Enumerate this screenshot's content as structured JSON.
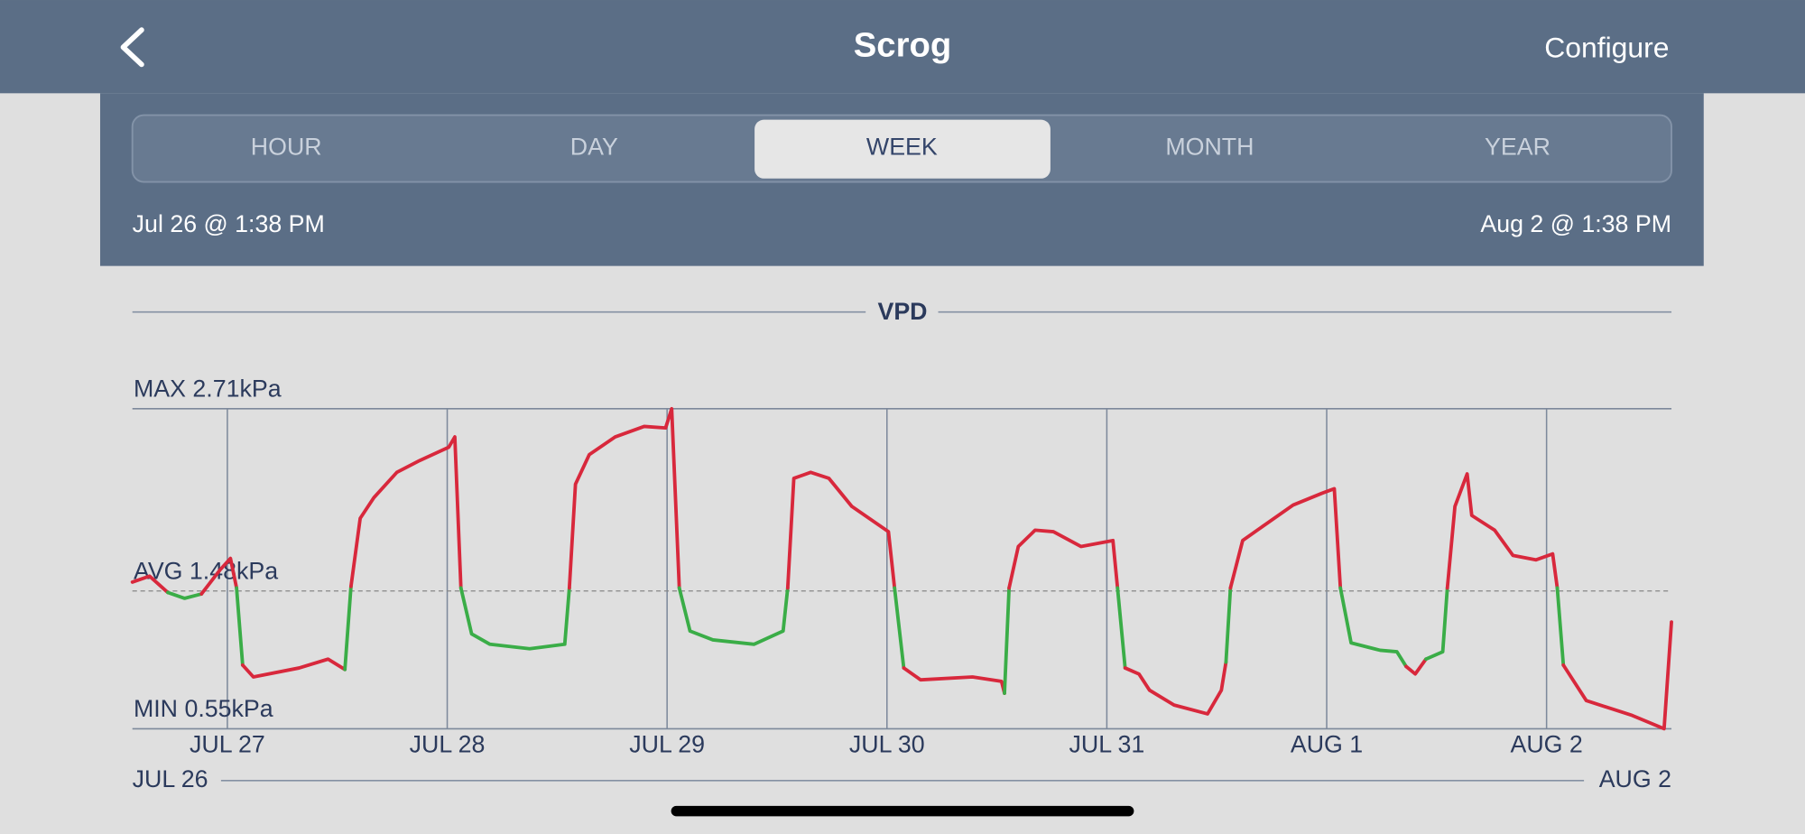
{
  "nav": {
    "title": "Scrog",
    "action": "Configure"
  },
  "segments": {
    "options": [
      "HOUR",
      "DAY",
      "WEEK",
      "MONTH",
      "YEAR"
    ],
    "selected_index": 2
  },
  "range": {
    "start": "Jul 26 @ 1:38 PM",
    "end": "Aug 2 @ 1:38 PM"
  },
  "chart_data": {
    "type": "line",
    "title": "VPD",
    "x": [
      "Jul 26 13:38",
      "Jul 26 15:30",
      "Jul 26 17:30",
      "Jul 26 19:20",
      "Jul 26 21:10",
      "Jul 26 23:10",
      "Jul 27 00:20",
      "Jul 27 01:00",
      "Jul 27 01:40",
      "Jul 27 02:50",
      "Jul 27 07:50",
      "Jul 27 11:00",
      "Jul 27 12:50",
      "Jul 27 13:30",
      "Jul 27 14:30",
      "Jul 27 16:00",
      "Jul 27 18:30",
      "Jul 27 21:00",
      "Jul 28 00:10",
      "Jul 28 00:50",
      "Jul 28 01:30",
      "Jul 28 02:40",
      "Jul 28 04:40",
      "Jul 28 09:00",
      "Jul 28 12:50",
      "Jul 28 13:20",
      "Jul 28 14:00",
      "Jul 28 15:30",
      "Jul 28 18:20",
      "Jul 28 21:30",
      "Jul 28 23:50",
      "Jul 29 00:30",
      "Jul 29 01:20",
      "Jul 29 02:30",
      "Jul 29 05:00",
      "Jul 29 09:30",
      "Jul 29 12:40",
      "Jul 29 13:10",
      "Jul 29 13:50",
      "Jul 29 15:40",
      "Jul 29 17:40",
      "Jul 29 20:10",
      "Jul 30 00:10",
      "Jul 30 00:50",
      "Jul 30 01:50",
      "Jul 30 03:40",
      "Jul 30 09:20",
      "Jul 30 12:30",
      "Jul 30 12:50",
      "Jul 30 13:20",
      "Jul 30 14:20",
      "Jul 30 16:10",
      "Jul 30 18:10",
      "Jul 30 21:10",
      "Jul 31 00:40",
      "Jul 31 01:10",
      "Jul 31 02:00",
      "Jul 31 03:30",
      "Jul 31 04:40",
      "Jul 31 07:20",
      "Jul 31 11:00",
      "Jul 31 12:30",
      "Jul 31 13:00",
      "Jul 31 13:30",
      "Jul 31 14:50",
      "Jul 31 17:20",
      "Jul 31 20:20",
      "Jul 31 23:30",
      "Aug 1 00:50",
      "Aug 1 01:30",
      "Aug 1 02:40",
      "Aug 1 05:50",
      "Aug 1 07:40",
      "Aug 1 08:40",
      "Aug 1 09:40",
      "Aug 1 10:50",
      "Aug 1 12:40",
      "Aug 1 13:10",
      "Aug 1 14:00",
      "Aug 1 15:20",
      "Aug 1 15:50",
      "Aug 1 18:20",
      "Aug 1 20:20",
      "Aug 1 22:50",
      "Aug 2 00:40",
      "Aug 2 01:10",
      "Aug 2 01:50",
      "Aug 2 04:20",
      "Aug 2 09:20",
      "Aug 2 12:50",
      "Aug 2 13:38"
    ],
    "values": [
      1.54,
      1.58,
      1.47,
      1.43,
      1.46,
      1.62,
      1.7,
      1.5,
      0.98,
      0.9,
      0.96,
      1.02,
      0.95,
      1.51,
      1.97,
      2.11,
      2.28,
      2.36,
      2.45,
      2.52,
      1.5,
      1.19,
      1.12,
      1.09,
      1.12,
      1.5,
      2.2,
      2.4,
      2.52,
      2.59,
      2.58,
      2.71,
      1.5,
      1.21,
      1.15,
      1.12,
      1.21,
      1.5,
      2.24,
      2.28,
      2.24,
      2.05,
      1.88,
      1.5,
      0.96,
      0.88,
      0.9,
      0.87,
      0.79,
      1.5,
      1.78,
      1.89,
      1.88,
      1.78,
      1.82,
      1.5,
      0.96,
      0.92,
      0.81,
      0.71,
      0.65,
      0.81,
      1.0,
      1.5,
      1.82,
      1.93,
      2.06,
      2.14,
      2.17,
      1.5,
      1.13,
      1.08,
      1.07,
      0.97,
      0.92,
      1.02,
      1.07,
      1.5,
      2.05,
      2.27,
      1.99,
      1.89,
      1.72,
      1.69,
      1.73,
      1.5,
      0.98,
      0.74,
      0.64,
      0.55,
      1.27
    ],
    "in_range": [
      1.0,
      1.48
    ],
    "colors": {
      "in_range": "#3aad47",
      "out_of_range": "#d8283c"
    },
    "xlim": [
      "Jul 26 13:38",
      "Aug 2 13:38"
    ],
    "xticks": [
      {
        "value": "Jul 27 00:00",
        "label": "JUL 27"
      },
      {
        "value": "Jul 28 00:00",
        "label": "JUL 28"
      },
      {
        "value": "Jul 29 00:00",
        "label": "JUL 29"
      },
      {
        "value": "Jul 30 00:00",
        "label": "JUL 30"
      },
      {
        "value": "Jul 31 00:00",
        "label": "JUL 31"
      },
      {
        "value": "Aug 1 00:00",
        "label": "AUG 1"
      },
      {
        "value": "Aug 2 00:00",
        "label": "AUG 2"
      }
    ],
    "ylim": [
      0.55,
      2.71
    ],
    "yticks": [
      {
        "value": 2.71,
        "label": "MAX 2.71kPa"
      },
      {
        "value": 1.48,
        "label": "AVG 1.48kPa"
      },
      {
        "value": 0.55,
        "label": "MIN 0.55kPa"
      }
    ],
    "range_labels": {
      "start": "JUL 26",
      "end": "AUG 2"
    }
  }
}
